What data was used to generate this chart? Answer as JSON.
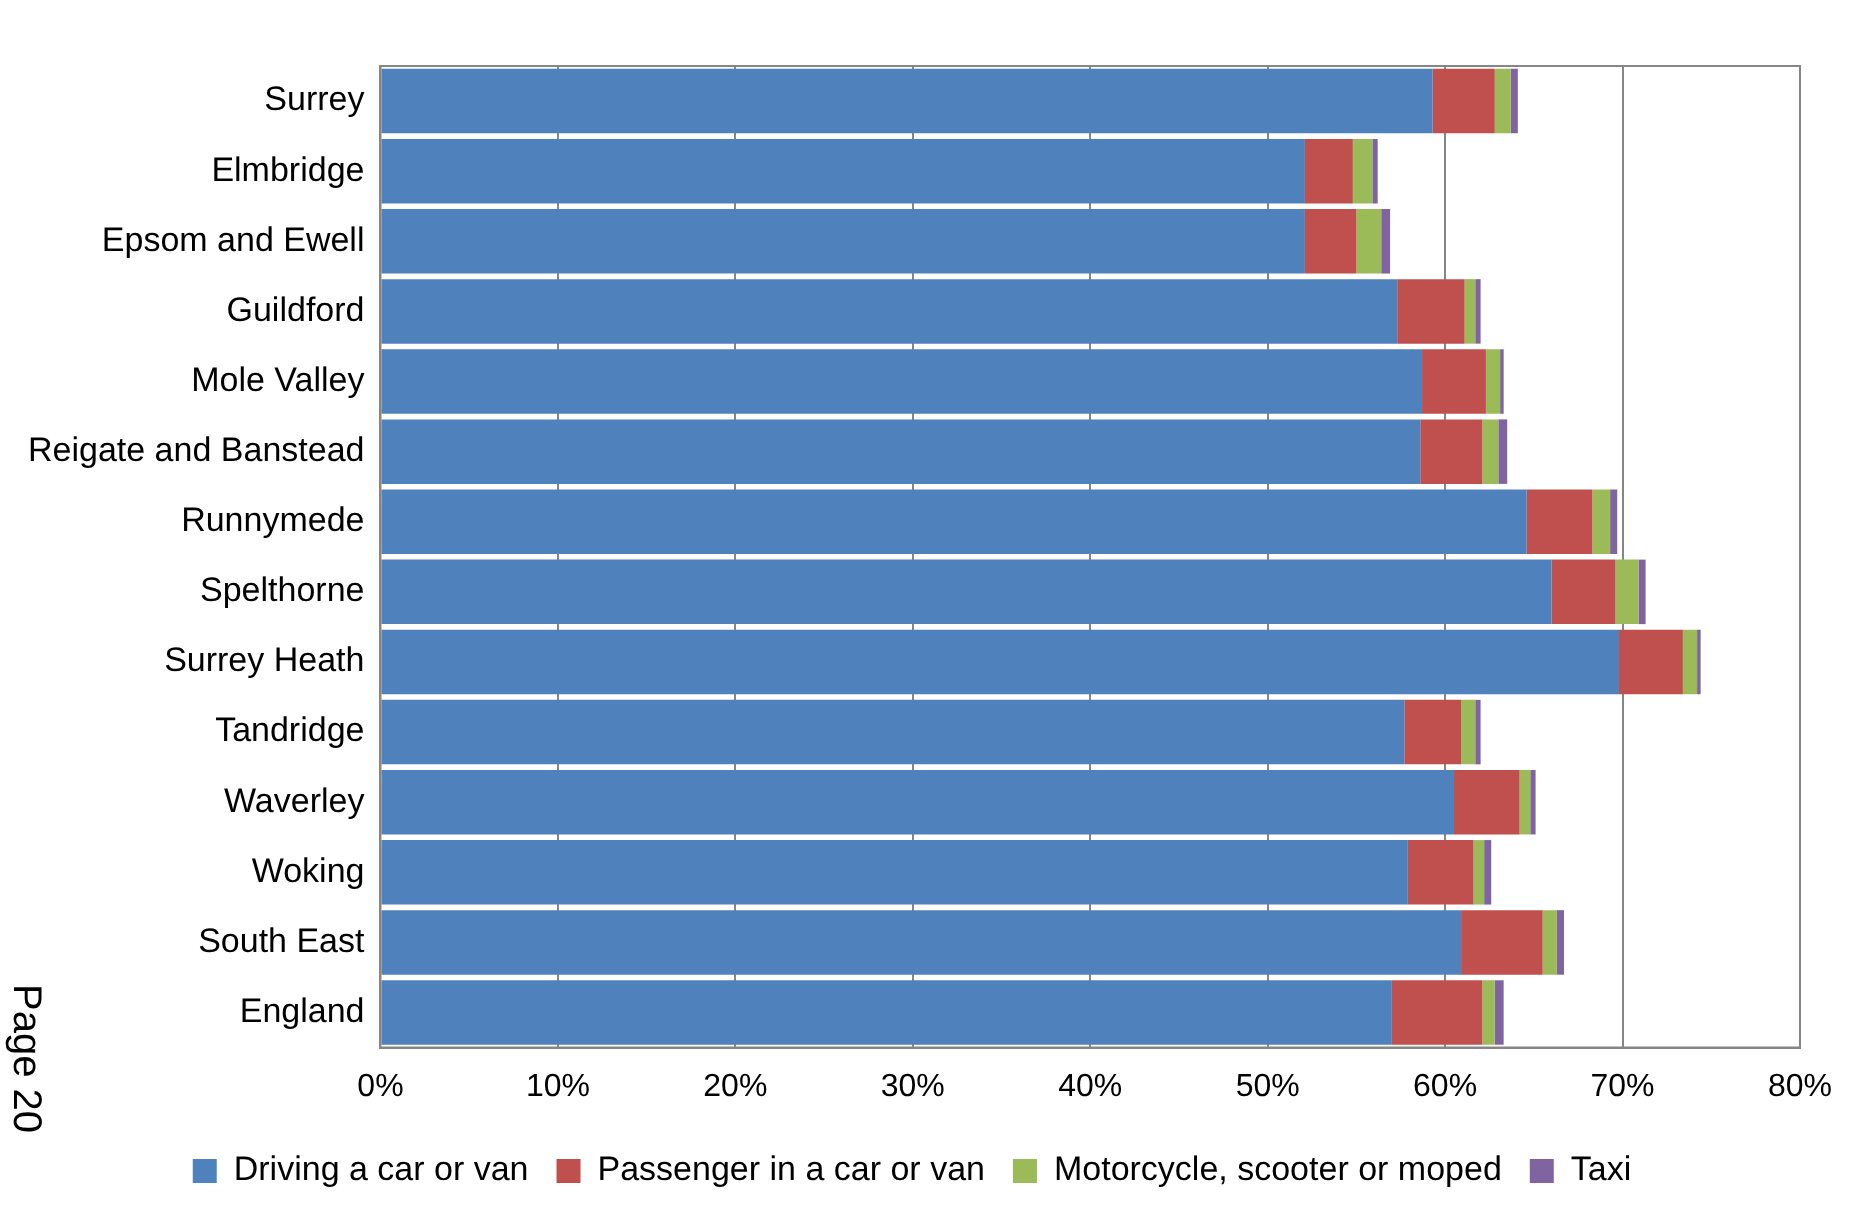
{
  "chart_data": {
    "type": "bar",
    "orientation": "horizontal",
    "stacked": true,
    "categories": [
      "Surrey",
      "Elmbridge",
      "Epsom and Ewell",
      "Guildford",
      "Mole Valley",
      "Reigate and Banstead",
      "Runnymede",
      "Spelthorne",
      "Surrey Heath",
      "Tandridge",
      "Waverley",
      "Woking",
      "South East",
      "England"
    ],
    "series": [
      {
        "name": "Driving a car or van",
        "color": "#4f81bd",
        "values": [
          59.3,
          52.1,
          52.1,
          57.3,
          58.7,
          58.6,
          64.6,
          66.0,
          69.8,
          57.7,
          60.5,
          57.9,
          60.9,
          57.0
        ]
      },
      {
        "name": "Passenger in a car or van",
        "color": "#c0504d",
        "values": [
          3.5,
          2.7,
          2.9,
          3.8,
          3.6,
          3.5,
          3.7,
          3.6,
          3.6,
          3.2,
          3.7,
          3.7,
          4.6,
          5.1
        ]
      },
      {
        "name": "Motorcycle, scooter or moped",
        "color": "#9bbb59",
        "values": [
          0.9,
          1.1,
          1.4,
          0.6,
          0.8,
          0.9,
          1.0,
          1.3,
          0.8,
          0.8,
          0.6,
          0.6,
          0.8,
          0.7
        ]
      },
      {
        "name": "Taxi",
        "color": "#8064a2",
        "values": [
          0.4,
          0.3,
          0.5,
          0.3,
          0.2,
          0.5,
          0.4,
          0.4,
          0.2,
          0.3,
          0.3,
          0.4,
          0.4,
          0.5
        ]
      }
    ],
    "xlim": [
      0,
      80
    ],
    "xticks": [
      {
        "value": 0,
        "label": "0%"
      },
      {
        "value": 10,
        "label": "10%"
      },
      {
        "value": 20,
        "label": "20%"
      },
      {
        "value": 30,
        "label": "30%"
      },
      {
        "value": 40,
        "label": "40%"
      },
      {
        "value": 50,
        "label": "50%"
      },
      {
        "value": 60,
        "label": "60%"
      },
      {
        "value": 70,
        "label": "70%"
      },
      {
        "value": 80,
        "label": "80%"
      }
    ],
    "grid": "x",
    "legend": "bottom",
    "annotations": [
      "Page 20"
    ]
  }
}
